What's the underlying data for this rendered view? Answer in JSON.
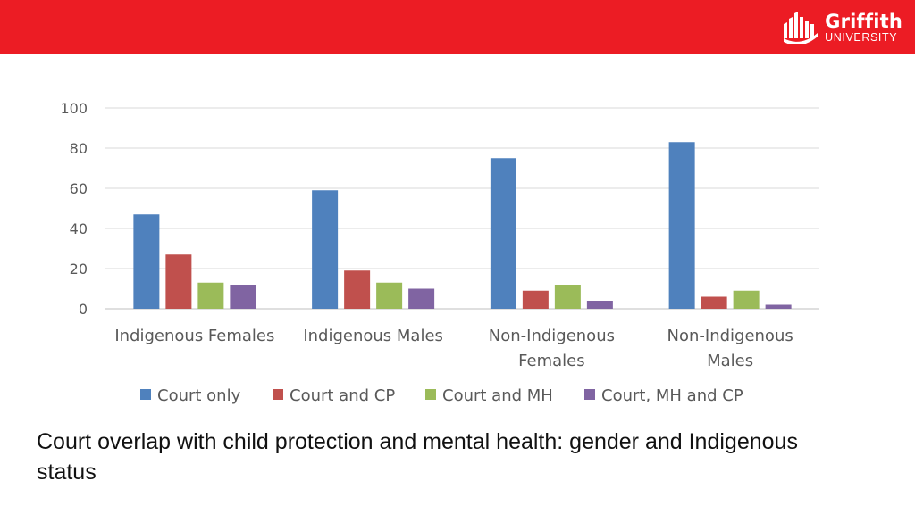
{
  "slide": {
    "brand": {
      "name": "Griffith",
      "sub": "UNIVERSITY"
    },
    "caption": "Court overlap with child protection and mental health: gender and Indigenous status"
  },
  "chart_data": {
    "type": "bar",
    "title": "",
    "xlabel": "",
    "ylabel": "",
    "categories": [
      [
        "Indigenous Females"
      ],
      [
        "Indigenous Males"
      ],
      [
        "Non-Indigenous",
        "Females"
      ],
      [
        "Non-Indigenous",
        "Males"
      ]
    ],
    "category_names": [
      "Indigenous Females",
      "Indigenous Males",
      "Non-Indigenous Females",
      "Non-Indigenous Males"
    ],
    "series": [
      {
        "name": "Court only",
        "color": "#4f81bd",
        "values": [
          47,
          59,
          75,
          83
        ]
      },
      {
        "name": "Court and CP",
        "color": "#c0504d",
        "values": [
          27,
          19,
          9,
          6
        ]
      },
      {
        "name": "Court and MH",
        "color": "#9bbb59",
        "values": [
          13,
          13,
          12,
          9
        ]
      },
      {
        "name": "Court, MH and CP",
        "color": "#8064a2",
        "values": [
          12,
          10,
          4,
          2
        ]
      }
    ],
    "ylim": [
      0,
      100
    ],
    "yticks": [
      0,
      20,
      40,
      60,
      80,
      100
    ],
    "grid": true,
    "legend": "bottom"
  }
}
